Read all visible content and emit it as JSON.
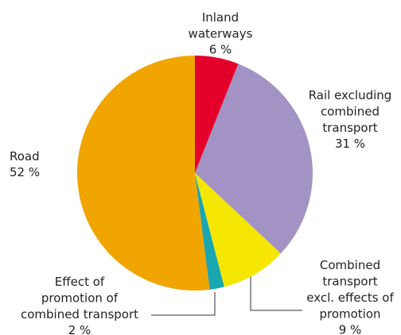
{
  "chart_data": {
    "type": "pie",
    "categories": [
      "Inland waterways",
      "Rail excluding combined transport",
      "Combined transport excl. effects of promotion",
      "Effect of promotion of combined transport",
      "Road"
    ],
    "values": [
      6,
      31,
      9,
      2,
      52
    ],
    "value_labels": [
      "6 %",
      "31 %",
      "9 %",
      "2 %",
      "52 %"
    ],
    "colors": [
      "#e4002b",
      "#a393c4",
      "#f5e600",
      "#1aa6b0",
      "#f0a500"
    ]
  }
}
